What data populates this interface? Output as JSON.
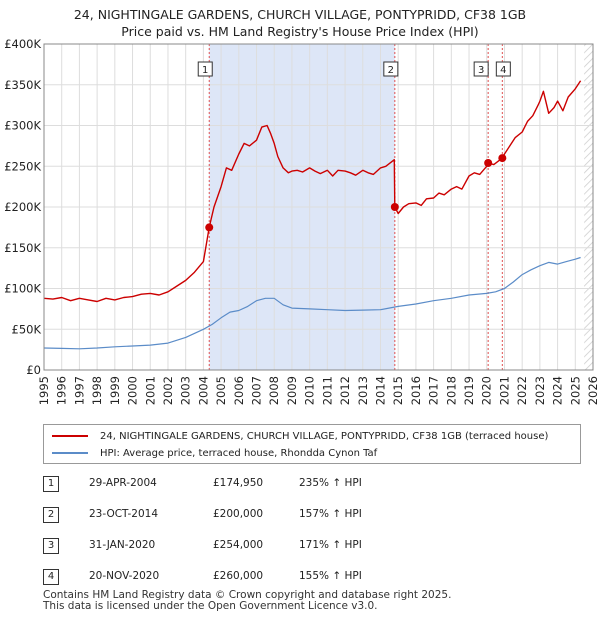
{
  "header": {
    "title_line1": "24, NIGHTINGALE GARDENS, CHURCH VILLAGE, PONTYPRIDD, CF38 1GB",
    "title_line2": "Price paid vs. HM Land Registry's House Price Index (HPI)"
  },
  "colors": {
    "property_line": "#cc0000",
    "hpi_line": "#5b8cc8",
    "shade": "#dde6f7",
    "hatch": "#cccccc",
    "grid": "#dddddd",
    "vline": "#e05050"
  },
  "legend": {
    "property_label": "24, NIGHTINGALE GARDENS, CHURCH VILLAGE, PONTYPRIDD, CF38 1GB (terraced house)",
    "hpi_label": "HPI: Average price, terraced house, Rhondda Cynon Taf"
  },
  "sales": [
    {
      "num": "1",
      "date": "29-APR-2004",
      "price": "£174,950",
      "hpi": "235% ↑ HPI"
    },
    {
      "num": "2",
      "date": "23-OCT-2014",
      "price": "£200,000",
      "hpi": "157% ↑ HPI"
    },
    {
      "num": "3",
      "date": "31-JAN-2020",
      "price": "£254,000",
      "hpi": "171% ↑ HPI"
    },
    {
      "num": "4",
      "date": "20-NOV-2020",
      "price": "£260,000",
      "hpi": "155% ↑ HPI"
    }
  ],
  "footer": {
    "line1": "Contains HM Land Registry data © Crown copyright and database right 2025.",
    "line2": "This data is licensed under the Open Government Licence v3.0."
  },
  "chart_data": {
    "type": "line",
    "title": "24, NIGHTINGALE GARDENS, CHURCH VILLAGE, PONTYPRIDD, CF38 1GB — Price paid vs. HM Land Registry's House Price Index (HPI)",
    "xlabel": "",
    "ylabel": "",
    "xlim": [
      1995,
      2026
    ],
    "ylim": [
      0,
      400000
    ],
    "x_ticks": [
      1995,
      1996,
      1997,
      1998,
      1999,
      2000,
      2001,
      2002,
      2003,
      2004,
      2005,
      2006,
      2007,
      2008,
      2009,
      2010,
      2011,
      2012,
      2013,
      2014,
      2015,
      2016,
      2017,
      2018,
      2019,
      2020,
      2021,
      2022,
      2023,
      2024,
      2025,
      2026
    ],
    "y_ticks": [
      {
        "value": 0,
        "label": "£0"
      },
      {
        "value": 50000,
        "label": "£50K"
      },
      {
        "value": 100000,
        "label": "£100K"
      },
      {
        "value": 150000,
        "label": "£150K"
      },
      {
        "value": 200000,
        "label": "£200K"
      },
      {
        "value": 250000,
        "label": "£250K"
      },
      {
        "value": 300000,
        "label": "£300K"
      },
      {
        "value": 350000,
        "label": "£350K"
      },
      {
        "value": 400000,
        "label": "£400K"
      }
    ],
    "grid": true,
    "shaded_period": [
      2004.33,
      2014.81
    ],
    "hatched_from": 2025.5,
    "series": [
      {
        "name": "24, NIGHTINGALE GARDENS, CHURCH VILLAGE, PONTYPRIDD, CF38 1GB (terraced house)",
        "x": [
          1995.0,
          1995.5,
          1996.0,
          1996.5,
          1997.0,
          1997.5,
          1998.0,
          1998.5,
          1999.0,
          1999.5,
          2000.0,
          2000.5,
          2001.0,
          2001.5,
          2002.0,
          2002.5,
          2003.0,
          2003.5,
          2004.0,
          2004.33,
          2004.6,
          2005.0,
          2005.3,
          2005.6,
          2006.0,
          2006.3,
          2006.6,
          2007.0,
          2007.3,
          2007.6,
          2007.8,
          2008.0,
          2008.2,
          2008.5,
          2008.8,
          2009.0,
          2009.3,
          2009.6,
          2010.0,
          2010.3,
          2010.6,
          2011.0,
          2011.3,
          2011.6,
          2012.0,
          2012.3,
          2012.6,
          2013.0,
          2013.3,
          2013.6,
          2014.0,
          2014.3,
          2014.6,
          2014.78,
          2014.81,
          2015.0,
          2015.3,
          2015.6,
          2016.0,
          2016.3,
          2016.6,
          2017.0,
          2017.3,
          2017.6,
          2018.0,
          2018.3,
          2018.6,
          2019.0,
          2019.3,
          2019.6,
          2020.0,
          2020.08,
          2020.4,
          2020.88,
          2021.0,
          2021.3,
          2021.6,
          2022.0,
          2022.3,
          2022.6,
          2022.9,
          2023.0,
          2023.2,
          2023.5,
          2023.8,
          2024.0,
          2024.3,
          2024.6,
          2025.0,
          2025.3
        ],
        "y": [
          88000,
          87000,
          89000,
          85000,
          88000,
          86000,
          84000,
          88000,
          86000,
          89000,
          90000,
          93000,
          94000,
          92000,
          96000,
          103000,
          110000,
          120000,
          133000,
          174950,
          200000,
          225000,
          248000,
          245000,
          265000,
          278000,
          275000,
          282000,
          298000,
          300000,
          290000,
          278000,
          262000,
          248000,
          242000,
          244000,
          245000,
          243000,
          248000,
          244000,
          241000,
          245000,
          238000,
          245000,
          244000,
          242000,
          239000,
          245000,
          242000,
          240000,
          248000,
          250000,
          255000,
          258000,
          200000,
          192000,
          200000,
          204000,
          205000,
          202000,
          210000,
          211000,
          217000,
          215000,
          222000,
          225000,
          222000,
          238000,
          242000,
          240000,
          250000,
          254000,
          252000,
          260000,
          265000,
          275000,
          285000,
          292000,
          305000,
          312000,
          325000,
          330000,
          342000,
          315000,
          322000,
          330000,
          318000,
          335000,
          345000,
          355000
        ]
      },
      {
        "name": "HPI: Average price, terraced house, Rhondda Cynon Taf",
        "x": [
          1995.0,
          1996.0,
          1997.0,
          1998.0,
          1999.0,
          2000.0,
          2001.0,
          2002.0,
          2003.0,
          2004.0,
          2004.5,
          2005.0,
          2005.5,
          2006.0,
          2006.5,
          2007.0,
          2007.5,
          2008.0,
          2008.5,
          2009.0,
          2010.0,
          2011.0,
          2012.0,
          2013.0,
          2014.0,
          2015.0,
          2016.0,
          2017.0,
          2018.0,
          2019.0,
          2020.0,
          2020.5,
          2021.0,
          2021.5,
          2022.0,
          2022.5,
          2023.0,
          2023.5,
          2024.0,
          2024.5,
          2025.0,
          2025.3
        ],
        "y": [
          27000,
          26500,
          26000,
          27000,
          28500,
          29500,
          30500,
          33000,
          40000,
          50000,
          56000,
          64000,
          71000,
          73000,
          78000,
          85000,
          88000,
          88000,
          80000,
          76000,
          75000,
          74000,
          73000,
          73500,
          74000,
          78000,
          81000,
          85000,
          88000,
          92000,
          94000,
          96000,
          100000,
          108000,
          117000,
          123000,
          128000,
          132000,
          130000,
          133000,
          136000,
          138000
        ]
      }
    ],
    "annotations": [
      {
        "label": "1",
        "x": 2004.33,
        "y": 174950
      },
      {
        "label": "2",
        "x": 2014.81,
        "y": 200000
      },
      {
        "label": "3",
        "x": 2020.08,
        "y": 254000
      },
      {
        "label": "4",
        "x": 2020.88,
        "y": 260000
      }
    ]
  }
}
